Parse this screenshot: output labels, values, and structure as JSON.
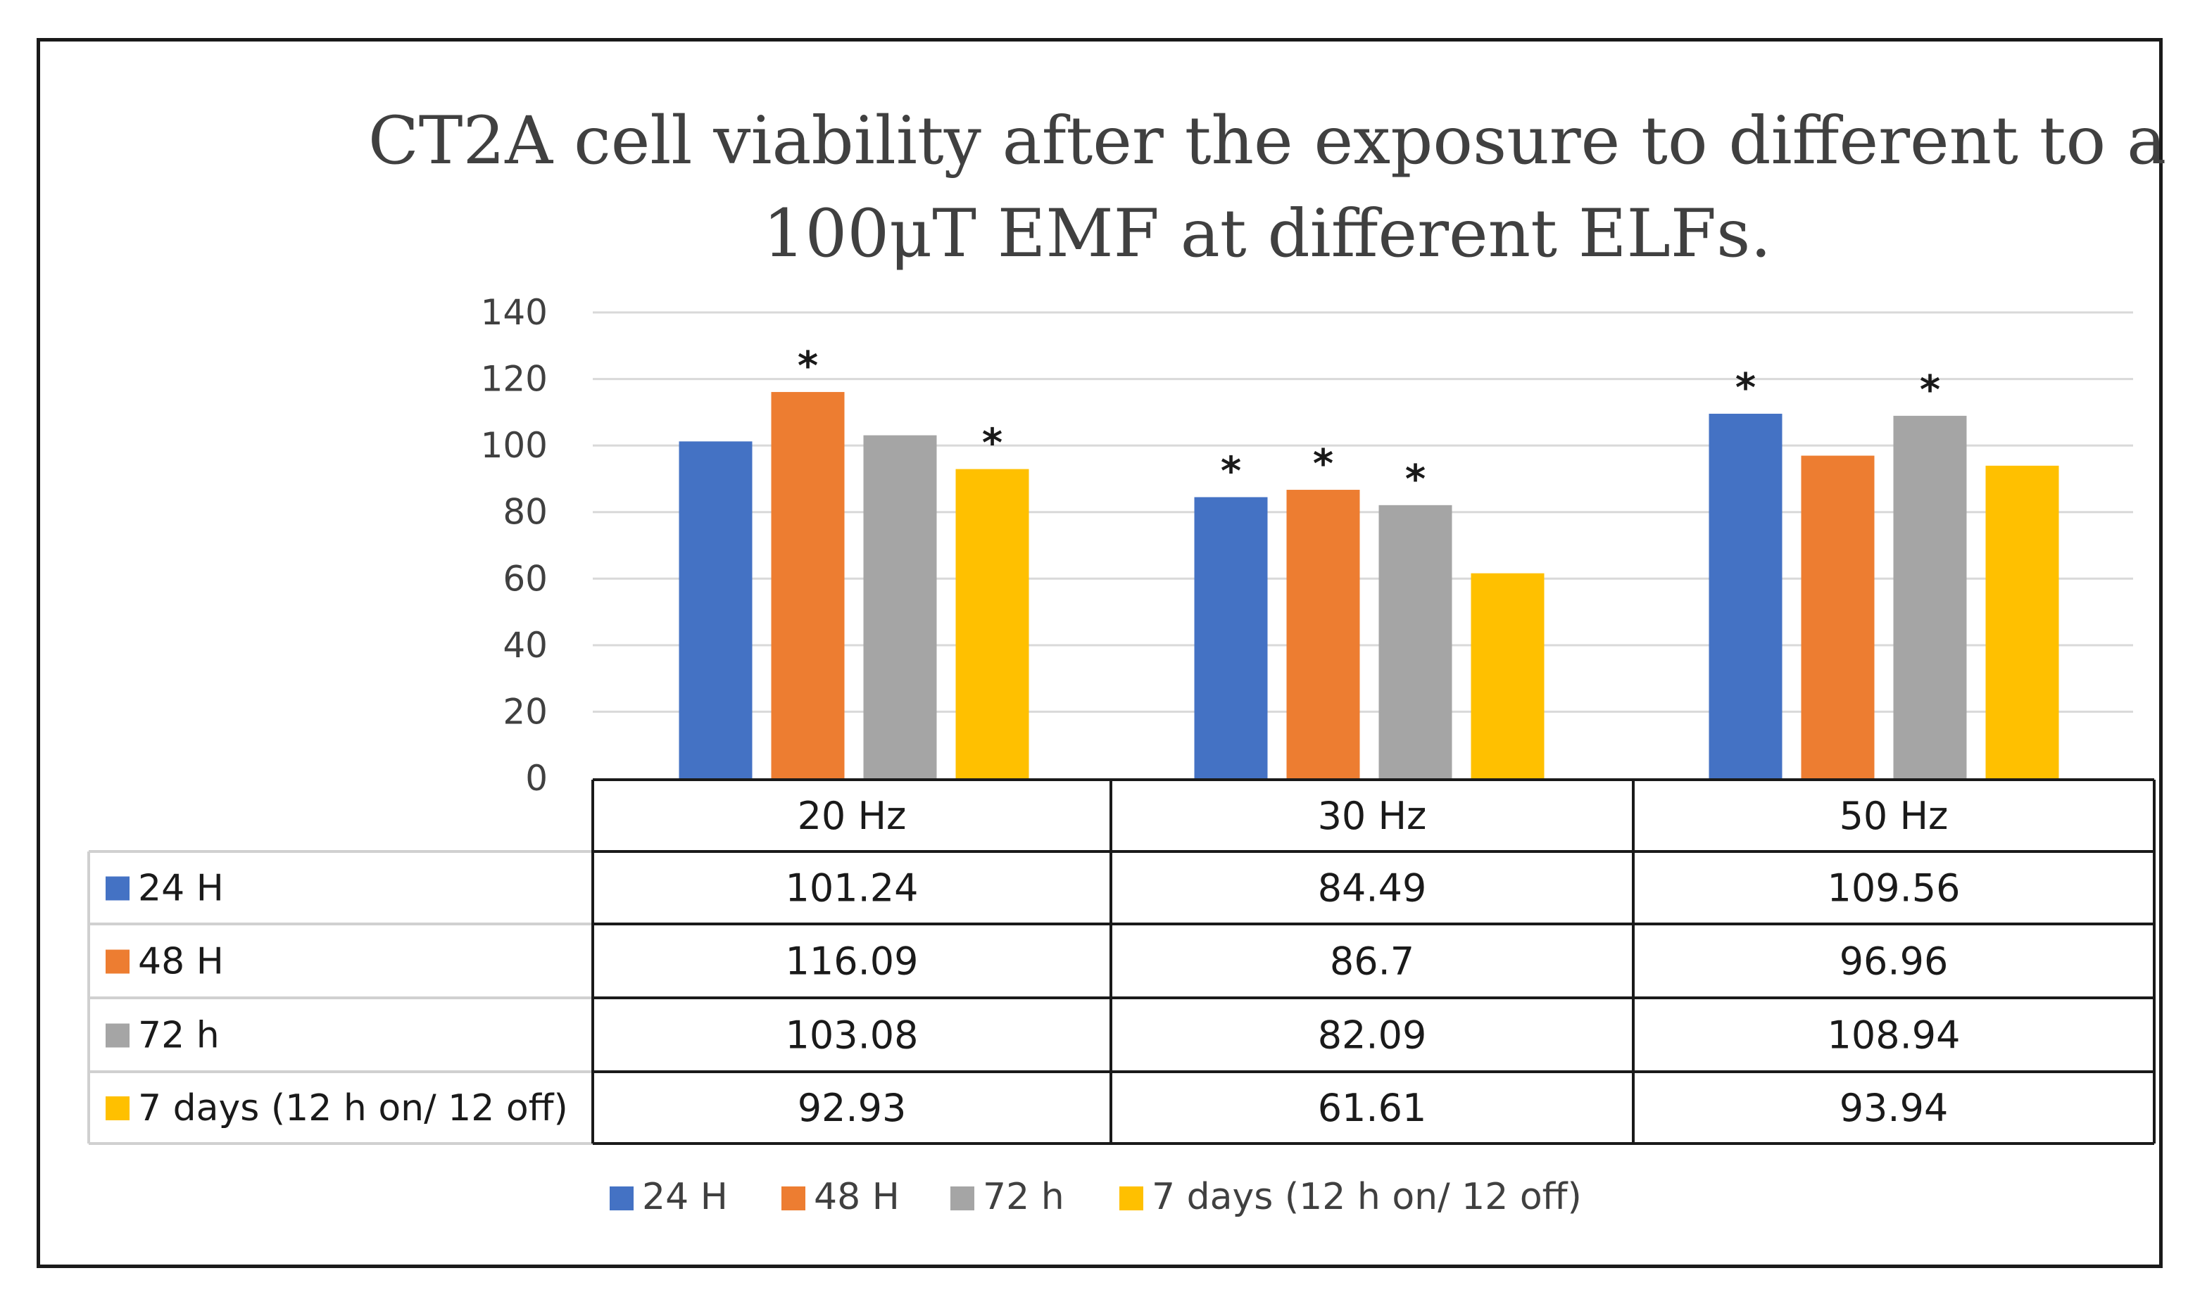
{
  "chart_data": {
    "type": "bar",
    "title": "CT2A cell viability after the exposure to different to a 100μT EMF at different ELFs.",
    "title_lines": [
      "CT2A cell viability after the exposure to different to a",
      "100μT EMF at different ELFs."
    ],
    "categories": [
      "20 Hz",
      "30 Hz",
      "50 Hz"
    ],
    "series": [
      {
        "name": "24 H",
        "color": "#4472C4",
        "values": [
          101.24,
          84.49,
          109.56
        ],
        "value_labels": [
          "101.24",
          "84.49",
          "109.56"
        ],
        "significant": [
          false,
          true,
          true
        ]
      },
      {
        "name": "48 H",
        "color": "#ED7D31",
        "values": [
          116.09,
          86.7,
          96.96
        ],
        "value_labels": [
          "116.09",
          "86.7",
          "96.96"
        ],
        "significant": [
          true,
          true,
          false
        ]
      },
      {
        "name": "72 h",
        "color": "#A5A5A5",
        "values": [
          103.08,
          82.09,
          108.94
        ],
        "value_labels": [
          "103.08",
          "82.09",
          "108.94"
        ],
        "significant": [
          false,
          true,
          true
        ]
      },
      {
        "name": "7 days (12 h on/ 12 off)",
        "color": "#FFC000",
        "values": [
          92.93,
          61.61,
          93.94
        ],
        "value_labels": [
          "92.93",
          "61.61",
          "93.94"
        ],
        "significant": [
          true,
          false,
          false
        ]
      }
    ],
    "significance_marker": "*",
    "ylim": [
      0,
      140
    ],
    "yticks": [
      0,
      20,
      40,
      60,
      80,
      100,
      120,
      140
    ],
    "grid": true,
    "legend_position": "bottom-center",
    "data_table": true
  }
}
